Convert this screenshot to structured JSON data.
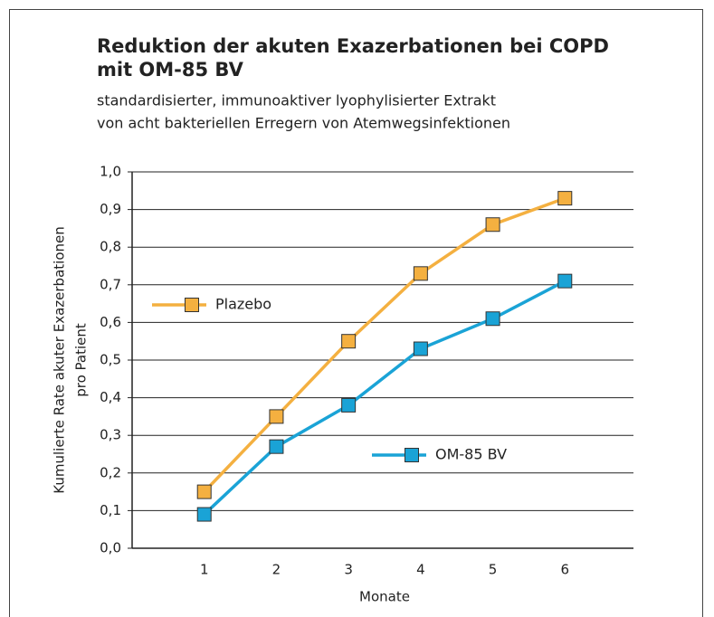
{
  "chart_data": {
    "type": "line",
    "title": [
      "Reduktion der akuten Exazerbationen bei COPD",
      "mit OM-85 BV"
    ],
    "subtitle": [
      "standardisierter, immunoaktiver lyophylisierter Extrakt",
      "von acht bakteriellen Erregern von Atemwegsinfektionen"
    ],
    "x_label": "Monate",
    "y_label": [
      "Kumulierte Rate akuter Exazerbationen",
      "pro Patient"
    ],
    "x": [
      1,
      2,
      3,
      4,
      5,
      6
    ],
    "xlim": [
      0,
      7
    ],
    "xticks": [
      1,
      2,
      3,
      4,
      5,
      6
    ],
    "ylim": [
      0,
      1
    ],
    "yticks": [
      {
        "value": 0,
        "label": "0,0"
      },
      {
        "value": 0.1,
        "label": "0,1"
      },
      {
        "value": 0.2,
        "label": "0,2"
      },
      {
        "value": 0.3,
        "label": "0,3"
      },
      {
        "value": 0.4,
        "label": "0,4"
      },
      {
        "value": 0.5,
        "label": "0,5"
      },
      {
        "value": 0.6,
        "label": "0,6"
      },
      {
        "value": 0.7,
        "label": "0,7"
      },
      {
        "value": 0.8,
        "label": "0,8"
      },
      {
        "value": 0.9,
        "label": "0,9"
      },
      {
        "value": 1,
        "label": "1,0"
      }
    ],
    "grid": true,
    "series": [
      {
        "name": "Plazebo",
        "color": "#f4b040",
        "values": [
          0.15,
          0.35,
          0.55,
          0.73,
          0.86,
          0.93
        ]
      },
      {
        "name": "OM-85 BV",
        "color": "#1aa3d6",
        "values": [
          0.09,
          0.27,
          0.38,
          0.53,
          0.61,
          0.71
        ]
      }
    ]
  }
}
